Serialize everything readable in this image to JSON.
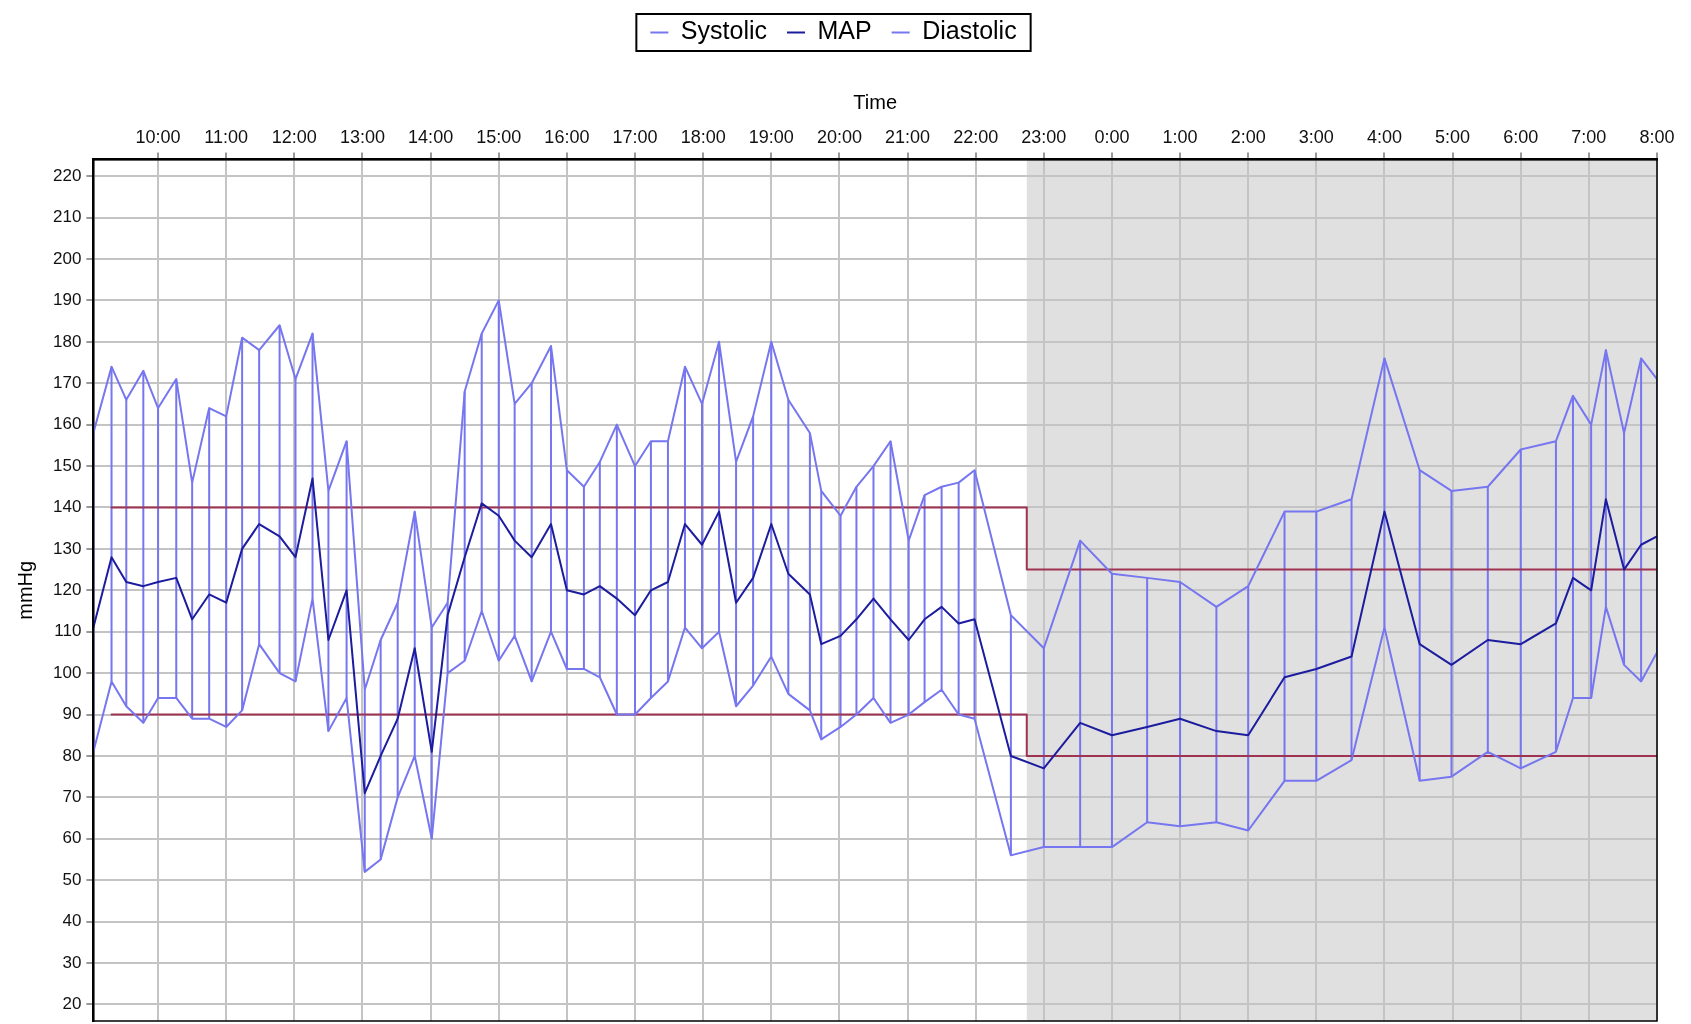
{
  "chart_data": {
    "type": "line",
    "xlabel": "Time",
    "ylabel": "mmHg",
    "x": [
      "2000-01-01T09:03",
      "2000-01-01T09:19",
      "2000-01-01T09:32",
      "2000-01-01T09:47",
      "2000-01-01T10:00",
      "2000-01-01T10:16",
      "2000-01-01T10:30",
      "2000-01-01T10:45",
      "2000-01-01T11:00",
      "2000-01-01T11:14",
      "2000-01-01T11:29",
      "2000-01-01T11:47",
      "2000-01-01T12:01",
      "2000-01-01T12:16",
      "2000-01-01T12:30",
      "2000-01-01T12:46",
      "2000-01-01T13:02",
      "2000-01-01T13:16",
      "2000-01-01T13:31",
      "2000-01-01T13:46",
      "2000-01-01T14:01",
      "2000-01-01T14:15",
      "2000-01-01T14:30",
      "2000-01-01T14:45",
      "2000-01-01T15:00",
      "2000-01-01T15:14",
      "2000-01-01T15:29",
      "2000-01-01T15:46",
      "2000-01-01T16:00",
      "2000-01-01T16:15",
      "2000-01-01T16:29",
      "2000-01-01T16:44",
      "2000-01-01T17:00",
      "2000-01-01T17:14",
      "2000-01-01T17:29",
      "2000-01-01T17:44",
      "2000-01-01T17:59",
      "2000-01-01T18:14",
      "2000-01-01T18:29",
      "2000-01-01T18:44",
      "2000-01-01T19:00",
      "2000-01-01T19:15",
      "2000-01-01T19:34",
      "2000-01-01T19:44",
      "2000-01-01T20:01",
      "2000-01-01T20:15",
      "2000-01-01T20:30",
      "2000-01-01T20:45",
      "2000-01-01T21:01",
      "2000-01-01T21:15",
      "2000-01-01T21:30",
      "2000-01-01T21:45",
      "2000-01-01T21:59",
      "2000-01-01T22:31",
      "2000-01-01T23:00",
      "2000-01-01T23:32",
      "2000-01-02T00:00",
      "2000-01-02T00:31",
      "2000-01-02T01:00",
      "2000-01-02T01:32",
      "2000-01-02T02:00",
      "2000-01-02T02:32",
      "2000-01-02T03:00",
      "2000-01-02T03:31",
      "2000-01-02T04:00",
      "2000-01-02T04:31",
      "2000-01-02T04:59",
      "2000-01-02T05:31",
      "2000-01-02T06:00",
      "2000-01-02T06:31",
      "2000-01-02T06:46",
      "2000-01-02T07:02",
      "2000-01-02T07:15",
      "2000-01-02T07:31",
      "2000-01-02T07:46",
      "2000-01-02T08:00"
    ],
    "xlim": [
      "2000-01-01T09:03",
      "2000-01-02T08:00"
    ],
    "xticks": [
      {
        "value": "2000-01-01T10:00",
        "label": "10:00"
      },
      {
        "value": "2000-01-01T11:00",
        "label": "11:00"
      },
      {
        "value": "2000-01-01T12:00",
        "label": "12:00"
      },
      {
        "value": "2000-01-01T13:00",
        "label": "13:00"
      },
      {
        "value": "2000-01-01T14:00",
        "label": "14:00"
      },
      {
        "value": "2000-01-01T15:00",
        "label": "15:00"
      },
      {
        "value": "2000-01-01T16:00",
        "label": "16:00"
      },
      {
        "value": "2000-01-01T17:00",
        "label": "17:00"
      },
      {
        "value": "2000-01-01T18:00",
        "label": "18:00"
      },
      {
        "value": "2000-01-01T19:00",
        "label": "19:00"
      },
      {
        "value": "2000-01-01T20:00",
        "label": "20:00"
      },
      {
        "value": "2000-01-01T21:00",
        "label": "21:00"
      },
      {
        "value": "2000-01-01T22:00",
        "label": "22:00"
      },
      {
        "value": "2000-01-01T23:00",
        "label": "23:00"
      },
      {
        "value": "2000-01-02T00:00",
        "label": "0:00"
      },
      {
        "value": "2000-01-02T01:00",
        "label": "1:00"
      },
      {
        "value": "2000-01-02T02:00",
        "label": "2:00"
      },
      {
        "value": "2000-01-02T03:00",
        "label": "3:00"
      },
      {
        "value": "2000-01-02T04:00",
        "label": "4:00"
      },
      {
        "value": "2000-01-02T05:00",
        "label": "5:00"
      },
      {
        "value": "2000-01-02T06:00",
        "label": "6:00"
      },
      {
        "value": "2000-01-02T07:00",
        "label": "7:00"
      },
      {
        "value": "2000-01-02T08:00",
        "label": "8:00"
      }
    ],
    "ylim": [
      16,
      224
    ],
    "yticks": [
      20,
      30,
      40,
      50,
      60,
      70,
      80,
      90,
      100,
      110,
      120,
      130,
      140,
      150,
      160,
      170,
      180,
      190,
      200,
      210,
      220
    ],
    "grid": true,
    "legend": "top",
    "marker": "none",
    "line_style": "solid",
    "bands": [
      {
        "axis": "x",
        "from": "2000-01-01T22:45",
        "to": "2000-01-02T08:00",
        "color": "#e0e0e0"
      }
    ],
    "series": [
      {
        "name": "Systolic",
        "color": "#7676f0",
        "values": [
          158,
          174,
          166,
          173,
          164,
          171,
          146,
          164,
          162,
          181,
          178,
          184,
          171,
          182,
          144,
          156,
          96,
          108,
          117,
          139,
          111,
          117,
          168,
          182,
          190,
          165,
          170,
          179,
          149,
          145,
          151,
          160,
          150,
          156,
          156,
          174,
          165,
          180,
          151,
          162,
          180,
          166,
          158,
          144,
          138,
          145,
          150,
          156,
          132,
          143,
          145,
          146,
          149,
          114,
          106,
          132,
          124,
          123,
          122,
          116,
          121,
          139,
          139,
          142,
          176,
          149,
          144,
          145,
          154,
          156,
          167,
          160,
          178,
          158,
          176,
          171
        ],
        "errors": [
          [
            81,
            158
          ],
          [
            98,
            174
          ],
          [
            92,
            166
          ],
          [
            88,
            173
          ],
          [
            94,
            164
          ],
          [
            94,
            171
          ],
          [
            89,
            146
          ],
          [
            89,
            164
          ],
          [
            87,
            162
          ],
          [
            91,
            181
          ],
          [
            107,
            178
          ],
          [
            100,
            184
          ],
          [
            98,
            171
          ],
          [
            118,
            182
          ],
          [
            86,
            144
          ],
          [
            94,
            156
          ],
          [
            52,
            96
          ],
          [
            55,
            108
          ],
          [
            70,
            117
          ],
          [
            80,
            139
          ],
          [
            60,
            111
          ],
          [
            100,
            117
          ],
          [
            103,
            168
          ],
          [
            115,
            182
          ],
          [
            103,
            190
          ],
          [
            109,
            165
          ],
          [
            98,
            170
          ],
          [
            110,
            179
          ],
          [
            101,
            149
          ],
          [
            101,
            145
          ],
          [
            99,
            151
          ],
          [
            90,
            160
          ],
          [
            90,
            150
          ],
          [
            94,
            156
          ],
          [
            98,
            156
          ],
          [
            111,
            174
          ],
          [
            106,
            165
          ],
          [
            110,
            180
          ],
          [
            92,
            151
          ],
          [
            97,
            162
          ],
          [
            104,
            180
          ],
          [
            95,
            166
          ],
          [
            91,
            158
          ],
          [
            84,
            144
          ],
          [
            87,
            138
          ],
          [
            90,
            145
          ],
          [
            94,
            150
          ],
          [
            88,
            156
          ],
          [
            90,
            132
          ],
          [
            93,
            143
          ],
          [
            96,
            145
          ],
          [
            90,
            146
          ],
          [
            89,
            149
          ],
          [
            56,
            114
          ],
          [
            58,
            106
          ],
          [
            58,
            132
          ],
          [
            58,
            124
          ],
          [
            64,
            123
          ],
          [
            63,
            122
          ],
          [
            64,
            116
          ],
          [
            62,
            121
          ],
          [
            74,
            139
          ],
          [
            74,
            139
          ],
          [
            79,
            142
          ],
          [
            111,
            176
          ],
          [
            74,
            149
          ],
          [
            75,
            144
          ],
          [
            81,
            145
          ],
          [
            77,
            154
          ],
          [
            81,
            156
          ],
          [
            94,
            167
          ],
          [
            94,
            160
          ],
          [
            116,
            178
          ],
          [
            102,
            158
          ],
          [
            98,
            176
          ],
          [
            105,
            171
          ]
        ]
      },
      {
        "name": "MAP",
        "color": "#1c1c9e",
        "values": [
          111,
          128,
          122,
          121,
          122,
          123,
          113,
          119,
          117,
          130,
          136,
          133,
          128,
          147,
          108,
          120,
          71,
          80,
          89,
          106,
          81,
          114,
          128,
          141,
          138,
          132,
          128,
          136,
          120,
          119,
          121,
          118,
          114,
          120,
          122,
          136,
          131,
          139,
          117,
          123,
          136,
          124,
          119,
          107,
          109,
          113,
          118,
          113,
          108,
          113,
          116,
          112,
          113,
          80,
          77,
          88,
          85,
          87,
          89,
          86,
          85,
          99,
          101,
          104,
          139,
          107,
          102,
          108,
          107,
          112,
          123,
          120,
          142,
          125,
          131,
          133
        ]
      },
      {
        "name": "Diastolic",
        "color": "#7676f0",
        "values": [
          81,
          98,
          92,
          88,
          94,
          94,
          89,
          89,
          87,
          91,
          107,
          100,
          98,
          118,
          86,
          94,
          52,
          55,
          70,
          80,
          60,
          100,
          103,
          115,
          103,
          109,
          98,
          110,
          101,
          101,
          99,
          90,
          90,
          94,
          98,
          111,
          106,
          110,
          92,
          97,
          104,
          95,
          91,
          84,
          87,
          90,
          94,
          88,
          90,
          93,
          96,
          90,
          89,
          56,
          58,
          58,
          58,
          64,
          63,
          64,
          62,
          74,
          74,
          79,
          111,
          74,
          75,
          81,
          77,
          81,
          94,
          94,
          116,
          102,
          98,
          105
        ]
      },
      {
        "type": "line",
        "color": "#9e3352",
        "x": [
          "2000-01-01T09:19",
          "2000-01-01T22:45",
          "2000-01-01T22:45",
          "2000-01-02T08:00"
        ],
        "values": [
          140,
          140,
          125,
          125
        ]
      },
      {
        "type": "line",
        "color": "#9e3352",
        "x": [
          "2000-01-01T09:19",
          "2000-01-01T22:45",
          "2000-01-01T22:45",
          "2000-01-02T08:00"
        ],
        "values": [
          90,
          90,
          80,
          80
        ]
      }
    ]
  }
}
